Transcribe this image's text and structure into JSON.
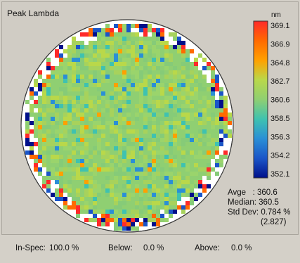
{
  "chart_data": {
    "type": "heatmap",
    "title": "Peak Lambda",
    "unit": "nm",
    "colorbar": {
      "ticks": [
        "369.1",
        "366.9",
        "364.8",
        "362.7",
        "360.6",
        "358.5",
        "356.3",
        "354.2",
        "352.1"
      ],
      "colors": [
        "#ff2a2a",
        "#ff6a00",
        "#ffa000",
        "#b9d84a",
        "#8fcf72",
        "#3fc2b0",
        "#2a8fd6",
        "#1a55c8",
        "#00108a"
      ]
    },
    "wafer": {
      "dominant_value": 360.6,
      "background": "#ffffff",
      "edge_ring": "mixed high/low values"
    },
    "stats": {
      "avge_label": "Avge",
      "avge": "360.6",
      "median_label": "Median",
      "median": "360.5",
      "stddev_label": "Std Dev",
      "stddev": "0.784 %",
      "stddev_abs": "(2.827)"
    }
  },
  "footer": {
    "inspec_label": "In-Spec:",
    "inspec": "100.0 %",
    "below_label": "Below:",
    "below": "0.0 %",
    "above_label": "Above:",
    "above": "0.0 %"
  }
}
